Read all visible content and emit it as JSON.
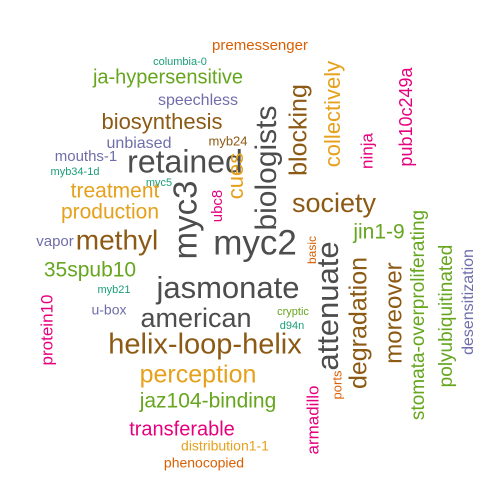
{
  "colors": {
    "gray": "#4d4d4d",
    "brown": "#8c5a14",
    "orange": "#e6a11c",
    "green": "#66a61e",
    "pink": "#e6007e",
    "purple": "#6e6eaa",
    "teal": "#1b9e77",
    "red": "#d95f02"
  },
  "words": [
    {
      "id": "premessenger",
      "text": "premessenger",
      "color": "red"
    },
    {
      "id": "columbia-0",
      "text": "columbia-0",
      "color": "teal"
    },
    {
      "id": "ja-hypersensitive",
      "text": "ja-hypersensitive",
      "color": "green"
    },
    {
      "id": "speechless",
      "text": "speechless",
      "color": "purple"
    },
    {
      "id": "biosynthesis",
      "text": "biosynthesis",
      "color": "brown"
    },
    {
      "id": "unbiased",
      "text": "unbiased",
      "color": "purple"
    },
    {
      "id": "myb24",
      "text": "myb24",
      "color": "brown"
    },
    {
      "id": "mouths-1",
      "text": "mouths-1",
      "color": "purple"
    },
    {
      "id": "myb34-1d",
      "text": "myb34-1d",
      "color": "teal"
    },
    {
      "id": "retained",
      "text": "retained",
      "color": "gray"
    },
    {
      "id": "myc5",
      "text": "myc5",
      "color": "teal"
    },
    {
      "id": "treatment",
      "text": "treatment",
      "color": "orange"
    },
    {
      "id": "production",
      "text": "production",
      "color": "orange"
    },
    {
      "id": "methyl",
      "text": "methyl",
      "color": "brown"
    },
    {
      "id": "vapor",
      "text": "vapor",
      "color": "purple"
    },
    {
      "id": "35spub10",
      "text": "35spub10",
      "color": "green"
    },
    {
      "id": "myb21",
      "text": "myb21",
      "color": "teal"
    },
    {
      "id": "u-box",
      "text": "u-box",
      "color": "purple"
    },
    {
      "id": "myc2",
      "text": "myc2",
      "color": "gray"
    },
    {
      "id": "jasmonate",
      "text": "jasmonate",
      "color": "gray"
    },
    {
      "id": "american",
      "text": "american",
      "color": "gray"
    },
    {
      "id": "helix-loop-helix",
      "text": "helix-loop-helix",
      "color": "brown"
    },
    {
      "id": "perception",
      "text": "perception",
      "color": "orange"
    },
    {
      "id": "jaz104-binding",
      "text": "jaz104-binding",
      "color": "green"
    },
    {
      "id": "transferable",
      "text": "transferable",
      "color": "pink"
    },
    {
      "id": "distribution1-1",
      "text": "distribution1-1",
      "color": "orange"
    },
    {
      "id": "phenocopied",
      "text": "phenocopied",
      "color": "red"
    },
    {
      "id": "society",
      "text": "society",
      "color": "brown"
    },
    {
      "id": "jin1-9",
      "text": "jin1-9",
      "color": "green"
    },
    {
      "id": "basic",
      "text": "basic",
      "color": "red"
    },
    {
      "id": "cryptic",
      "text": "cryptic",
      "color": "green"
    },
    {
      "id": "d94n",
      "text": "d94n",
      "color": "teal"
    },
    {
      "id": "protein10",
      "text": "protein10",
      "color": "pink"
    },
    {
      "id": "myc3",
      "text": "myc3",
      "color": "gray"
    },
    {
      "id": "biologists",
      "text": "biologists",
      "color": "gray"
    },
    {
      "id": "cues",
      "text": "cues",
      "color": "orange"
    },
    {
      "id": "ubc8",
      "text": "ubc8",
      "color": "pink"
    },
    {
      "id": "blocking",
      "text": "blocking",
      "color": "brown"
    },
    {
      "id": "collectively",
      "text": "collectively",
      "color": "orange"
    },
    {
      "id": "ninja",
      "text": "ninja",
      "color": "pink"
    },
    {
      "id": "pub10c249a",
      "text": "pub10c249a",
      "color": "pink"
    },
    {
      "id": "attenuate",
      "text": "attenuate",
      "color": "gray"
    },
    {
      "id": "degradation",
      "text": "degradation",
      "color": "brown"
    },
    {
      "id": "moreover",
      "text": "moreover",
      "color": "brown"
    },
    {
      "id": "armadillo",
      "text": "armadillo",
      "color": "pink"
    },
    {
      "id": "ports",
      "text": "ports",
      "color": "red"
    },
    {
      "id": "stomata-overproliferating",
      "text": "stomata-overproliferating",
      "color": "green"
    },
    {
      "id": "polyubiquitinated",
      "text": "polyubiquitinated",
      "color": "green"
    },
    {
      "id": "desensitization",
      "text": "desensitization",
      "color": "purple"
    }
  ]
}
